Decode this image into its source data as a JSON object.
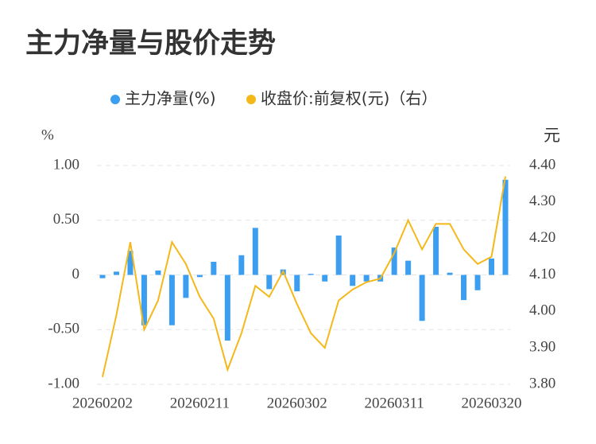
{
  "chart_data": {
    "type": "bar_line",
    "title": "主力净量与股价走势",
    "y_label": "%",
    "y2_label": "元",
    "categories": [
      "20260202",
      null,
      null,
      null,
      null,
      null,
      null,
      "20260211",
      null,
      null,
      null,
      null,
      null,
      null,
      "20260302",
      null,
      null,
      null,
      null,
      null,
      null,
      "20260311",
      null,
      null,
      null,
      null,
      null,
      null,
      "20260320",
      null
    ],
    "series": [
      {
        "name": "主力净量(%)",
        "type": "bar",
        "color": "#3c9ef0",
        "values": [
          -0.03,
          0.03,
          0.22,
          -0.46,
          0.04,
          -0.46,
          -0.21,
          -0.02,
          0.12,
          -0.6,
          0.18,
          0.43,
          -0.13,
          0.05,
          -0.15,
          0.01,
          -0.06,
          0.36,
          -0.1,
          -0.06,
          -0.06,
          0.25,
          0.13,
          -0.42,
          0.44,
          0.02,
          -0.23,
          -0.14,
          0.15,
          0.87
        ]
      },
      {
        "name": "收盘价:前复权(元)（右）",
        "type": "line",
        "axis": "y2",
        "color": "#f4b81a",
        "values": [
          3.82,
          3.99,
          4.19,
          3.95,
          4.03,
          4.19,
          4.13,
          4.04,
          3.98,
          3.84,
          3.94,
          4.07,
          4.04,
          4.11,
          4.02,
          3.94,
          3.9,
          4.03,
          4.06,
          4.08,
          4.09,
          4.16,
          4.25,
          4.17,
          4.24,
          4.24,
          4.17,
          4.13,
          4.15,
          4.37
        ]
      }
    ],
    "ylim": [
      -1,
      1
    ],
    "yticks": [
      {
        "value": -1,
        "label": "-1.00"
      },
      {
        "value": -0.5,
        "label": "-0.50"
      },
      0,
      {
        "value": 0.5,
        "label": "0.50"
      },
      {
        "value": 1,
        "label": "1.00"
      }
    ],
    "y2lim": [
      3.8,
      4.4
    ],
    "y2ticks": [
      {
        "value": 3.8,
        "label": "3.80"
      },
      {
        "value": 3.9,
        "label": "3.90"
      },
      {
        "value": 4.0,
        "label": "4.00"
      },
      {
        "value": 4.1,
        "label": "4.10"
      },
      {
        "value": 4.2,
        "label": "4.20"
      },
      {
        "value": 4.3,
        "label": "4.30"
      },
      {
        "value": 4.4,
        "label": "4.40"
      }
    ],
    "grid": true,
    "legend": "top"
  }
}
